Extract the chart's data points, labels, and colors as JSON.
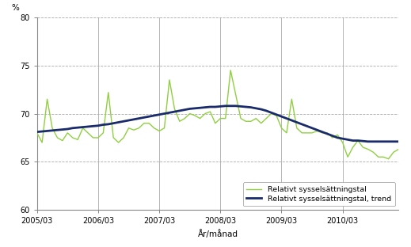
{
  "title": "",
  "ylabel": "%",
  "xlabel": "År/månad",
  "ylim": [
    60,
    80
  ],
  "yticks": [
    60,
    65,
    70,
    75,
    80
  ],
  "legend1": "Relativt sysselsättningstal",
  "legend2": "Relativt sysselsättningstal, trend",
  "line_color": "#90d040",
  "trend_color": "#1a2b6b",
  "background_color": "#ffffff",
  "grid_color_h": "#aaaaaa",
  "grid_color_v": "#aaaaaa",
  "x_tick_labels": [
    "2005/03",
    "2006/03",
    "2007/03",
    "2008/03",
    "2009/03",
    "2010/03"
  ],
  "monthly_values": [
    68.0,
    67.0,
    71.5,
    68.5,
    67.5,
    67.2,
    68.0,
    67.5,
    67.3,
    68.5,
    68.0,
    67.5,
    67.5,
    68.0,
    72.2,
    67.5,
    67.0,
    67.5,
    68.5,
    68.3,
    68.5,
    69.0,
    69.0,
    68.5,
    68.2,
    68.5,
    73.5,
    70.5,
    69.2,
    69.5,
    70.0,
    69.8,
    69.5,
    70.0,
    70.2,
    69.0,
    69.5,
    69.5,
    74.5,
    72.0,
    69.5,
    69.2,
    69.2,
    69.5,
    69.0,
    69.5,
    70.0,
    69.8,
    68.5,
    68.0,
    71.5,
    68.5,
    68.0,
    68.0,
    68.0,
    68.2,
    68.0,
    68.0,
    67.5,
    67.8,
    67.0,
    65.5,
    66.5,
    67.2,
    66.5,
    66.3,
    66.0,
    65.5,
    65.5,
    65.3,
    66.0,
    66.3
  ],
  "trend_values": [
    68.1,
    68.15,
    68.2,
    68.25,
    68.3,
    68.35,
    68.4,
    68.5,
    68.55,
    68.6,
    68.65,
    68.7,
    68.75,
    68.85,
    68.9,
    69.0,
    69.1,
    69.2,
    69.3,
    69.4,
    69.5,
    69.6,
    69.7,
    69.8,
    69.9,
    70.0,
    70.1,
    70.2,
    70.3,
    70.4,
    70.5,
    70.55,
    70.6,
    70.65,
    70.7,
    70.7,
    70.75,
    70.8,
    70.8,
    70.8,
    70.75,
    70.7,
    70.65,
    70.55,
    70.45,
    70.3,
    70.1,
    69.9,
    69.7,
    69.5,
    69.3,
    69.1,
    68.9,
    68.7,
    68.5,
    68.3,
    68.1,
    67.9,
    67.7,
    67.5,
    67.4,
    67.3,
    67.2,
    67.2,
    67.15,
    67.1,
    67.1,
    67.1,
    67.1,
    67.1,
    67.1,
    67.1
  ],
  "tick_positions": [
    0,
    12,
    24,
    36,
    48,
    60
  ],
  "n_months": 72
}
